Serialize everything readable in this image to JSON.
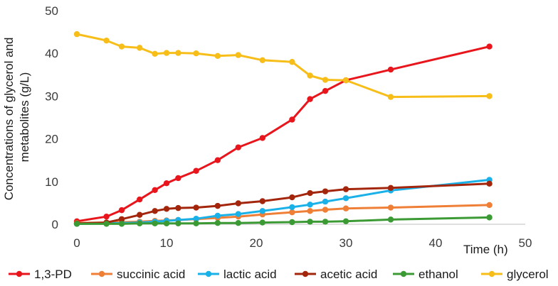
{
  "chart_data": {
    "type": "line",
    "xlabel": "Time (h)",
    "ylabel_lines": [
      "Concentrations of glycerol and",
      "metabolites (g/L)"
    ],
    "xlim": [
      0,
      50
    ],
    "ylim": [
      0,
      50
    ],
    "xticks": [
      0,
      10,
      20,
      30,
      40,
      50
    ],
    "yticks": [
      0,
      10,
      20,
      30,
      40,
      50
    ],
    "grid": false,
    "legend_position": "bottom",
    "series": [
      {
        "name": "1,3-PD",
        "color": "#e8161c",
        "x": [
          0,
          3.3,
          5,
          7,
          8.7,
          10,
          11.3,
          13.3,
          15.7,
          18,
          20.7,
          24,
          26,
          27.7,
          30,
          35,
          46
        ],
        "y": [
          0.7,
          1.8,
          3.3,
          5.8,
          8,
          9.6,
          10.8,
          12.5,
          15,
          18,
          20.2,
          24.5,
          29.3,
          31.2,
          33.7,
          36.2,
          41.6
        ]
      },
      {
        "name": "succinic acid",
        "color": "#ef7f37",
        "x": [
          0,
          3.3,
          5,
          7,
          8.7,
          10,
          11.3,
          13.3,
          15.7,
          18,
          20.7,
          24,
          26,
          27.7,
          30,
          35,
          46
        ],
        "y": [
          0.3,
          0.4,
          0.5,
          0.6,
          0.8,
          0.9,
          1.0,
          1.2,
          1.5,
          1.8,
          2.3,
          2.8,
          3.1,
          3.4,
          3.7,
          3.9,
          4.5
        ]
      },
      {
        "name": "lactic acid",
        "color": "#1ab1e8",
        "x": [
          0,
          3.3,
          5,
          7,
          8.7,
          10,
          11.3,
          13.3,
          15.7,
          18,
          20.7,
          24,
          26,
          27.7,
          30,
          35,
          46
        ],
        "y": [
          0.1,
          0.2,
          0.3,
          0.4,
          0.6,
          0.8,
          1.0,
          1.3,
          2.0,
          2.4,
          3.1,
          4.0,
          4.6,
          5.3,
          6.1,
          7.9,
          10.4
        ]
      },
      {
        "name": "acetic acid",
        "color": "#a3260c",
        "x": [
          0,
          3.3,
          5,
          7,
          8.7,
          10,
          11.3,
          13.3,
          15.7,
          18,
          20.7,
          24,
          26,
          27.7,
          30,
          35,
          46
        ],
        "y": [
          0.2,
          0.4,
          1.2,
          2.2,
          3.1,
          3.6,
          3.8,
          3.9,
          4.3,
          4.9,
          5.4,
          6.3,
          7.3,
          7.7,
          8.2,
          8.5,
          9.5
        ]
      },
      {
        "name": "ethanol",
        "color": "#3c9a35",
        "x": [
          0,
          3.3,
          5,
          7,
          8.7,
          10,
          11.3,
          13.3,
          15.7,
          18,
          20.7,
          24,
          26,
          27.7,
          30,
          35,
          46
        ],
        "y": [
          0.1,
          0.1,
          0.1,
          0.2,
          0.2,
          0.2,
          0.2,
          0.2,
          0.3,
          0.3,
          0.4,
          0.5,
          0.6,
          0.6,
          0.7,
          1.1,
          1.6
        ]
      },
      {
        "name": "glycerol",
        "color": "#f7be1a",
        "x": [
          0,
          3.3,
          5,
          7,
          8.7,
          10,
          11.3,
          13.3,
          15.7,
          18,
          20.7,
          24,
          26,
          27.7,
          30,
          35,
          46
        ],
        "y": [
          44.5,
          43,
          41.6,
          41.3,
          39.9,
          40.1,
          40.1,
          40,
          39.4,
          39.6,
          38.4,
          38,
          34.8,
          33.8,
          33.7,
          29.8,
          30
        ]
      }
    ]
  }
}
